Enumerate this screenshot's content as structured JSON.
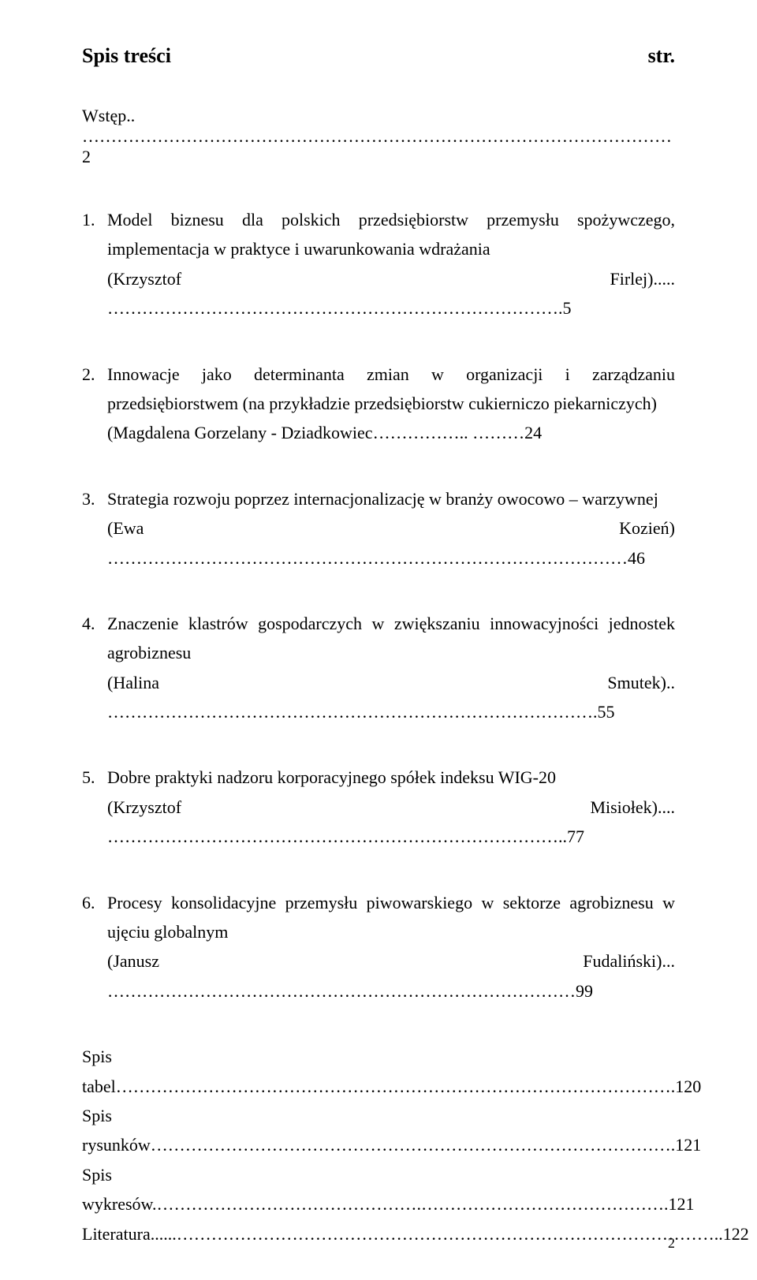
{
  "header": {
    "left": "Spis treści",
    "right": "str."
  },
  "intro": {
    "label": "Wstęp",
    "page_text": "2",
    "leader": ".."
  },
  "entries": [
    {
      "title": "Model biznesu dla polskich przedsiębiorstw przemysłu spożywczego, implementacja w praktyce i uwarunkowania wdrażania",
      "author": "(Krzysztof Firlej)",
      "leader": ".....",
      "page_text": ".5"
    },
    {
      "title": "Innowacje jako determinanta zmian w organizacji i zarządzaniu przedsiębiorstwem (na przykładzie przedsiębiorstw cukierniczo piekarniczych)",
      "author": "(Magdalena Gorzelany - Dziadkowiec",
      "leader": "..",
      "page_text": "24"
    },
    {
      "title": "Strategia rozwoju poprzez internacjonalizację w branży owocowo – warzywnej",
      "author": "(Ewa Kozień)",
      "leader": "",
      "page_text": "46"
    },
    {
      "title": "Znaczenie klastrów gospodarczych w zwiększaniu innowacyjności jednostek agrobiznesu",
      "author": "(Halina Smutek)",
      "leader": "..",
      "page_text": ".55"
    },
    {
      "title": "Dobre praktyki nadzoru korporacyjnego spółek indeksu WIG-20",
      "author": "(Krzysztof Misiołek)",
      "leader": "....",
      "page_text": "77"
    },
    {
      "title": "Procesy konsolidacyjne przemysłu piwowarskiego w sektorze agrobiznesu w ujęciu globalnym",
      "author": "(Janusz Fudaliński)",
      "leader": "...",
      "page_text": "99"
    }
  ],
  "back": [
    {
      "label": "Spis tabel",
      "leader": "",
      "page_text": ".120"
    },
    {
      "label": "Spis rysunków",
      "leader": "",
      "page_text": ".121"
    },
    {
      "label": "Spis wykresów",
      "leader": ".",
      "page_text": ".121"
    },
    {
      "label": "Literatura",
      "leader": "......",
      "page_text": "122"
    }
  ],
  "page_number": "2"
}
